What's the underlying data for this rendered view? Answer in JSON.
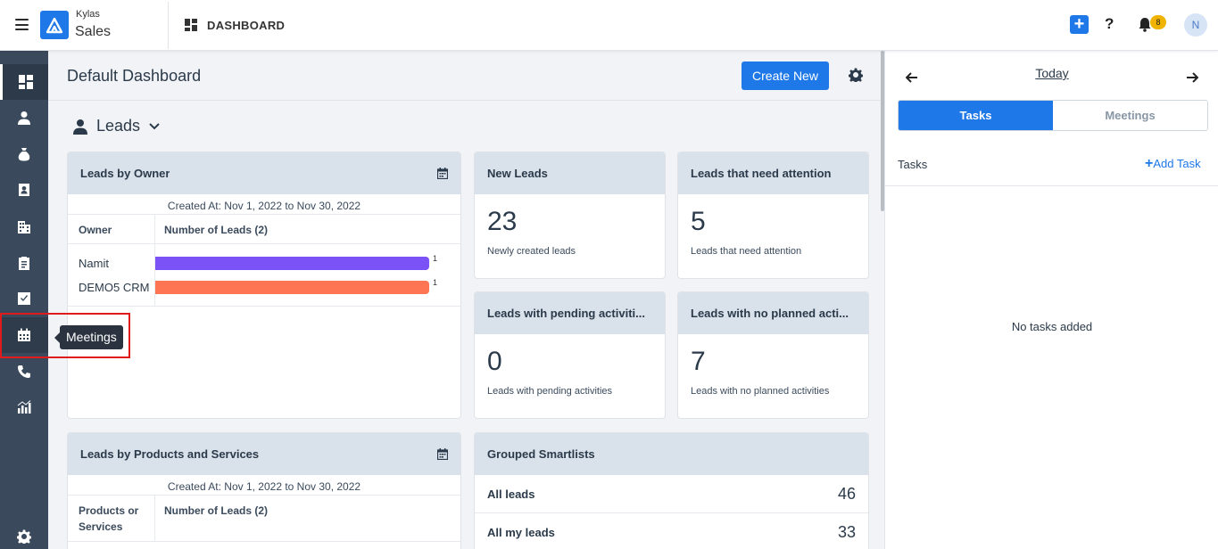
{
  "brand": {
    "line1": "Kylas",
    "line2": "Sales"
  },
  "header": {
    "section_label": "DASHBOARD",
    "notifications_count": "8",
    "avatar_initial": "N"
  },
  "sidebar": {
    "items": [
      {
        "name": "dashboard",
        "icon": "dashboard-icon"
      },
      {
        "name": "leads",
        "icon": "person-icon"
      },
      {
        "name": "deals",
        "icon": "money-bag-icon"
      },
      {
        "name": "contacts",
        "icon": "contact-card-icon"
      },
      {
        "name": "companies",
        "icon": "building-icon"
      },
      {
        "name": "reports-clipboard",
        "icon": "clipboard-icon"
      },
      {
        "name": "tasks",
        "icon": "checkbox-icon"
      },
      {
        "name": "meetings",
        "icon": "calendar-icon"
      },
      {
        "name": "calls",
        "icon": "phone-icon"
      },
      {
        "name": "reports",
        "icon": "bar-chart-icon"
      }
    ],
    "settings_icon": "gear-icon",
    "tooltip": "Meetings"
  },
  "main": {
    "title": "Default Dashboard",
    "create_button": "Create New",
    "section": "Leads",
    "leads_by_owner": {
      "title": "Leads by Owner",
      "created": "Created At: Nov 1, 2022 to Nov 30, 2022",
      "col1": "Owner",
      "col2": "Number of Leads (2)",
      "rows": [
        {
          "owner": "Namit",
          "value": "1",
          "color": "#7b52f5"
        },
        {
          "owner": "DEMO5 CRM",
          "value": "1",
          "color": "#fd7552"
        }
      ]
    },
    "new_leads": {
      "title": "New Leads",
      "value": "23",
      "sub": "Newly created leads"
    },
    "attention": {
      "title": "Leads that need attention",
      "value": "5",
      "sub": "Leads that need attention"
    },
    "pending": {
      "title": "Leads with pending activiti...",
      "value": "0",
      "sub": "Leads with pending activities"
    },
    "no_planned": {
      "title": "Leads with no planned acti...",
      "value": "7",
      "sub": "Leads with no planned activities"
    },
    "by_products": {
      "title": "Leads by Products and Services",
      "created": "Created At: Nov 1, 2022 to Nov 30, 2022",
      "col1": "Products or Services",
      "col2": "Number of Leads (2)"
    },
    "smartlists": {
      "title": "Grouped Smartlists",
      "rows": [
        {
          "name": "All leads",
          "count": "46"
        },
        {
          "name": "All my leads",
          "count": "33"
        }
      ]
    }
  },
  "right_panel": {
    "date_label": "Today",
    "tabs": [
      "Tasks",
      "Meetings"
    ],
    "active_tab": "Tasks",
    "tasks_label": "Tasks",
    "add_task": "Add Task",
    "empty": "No tasks added"
  },
  "colors": {
    "accent": "#1e78e8",
    "sidebar": "#3a4a5c",
    "card_header": "#d9e1ea"
  }
}
